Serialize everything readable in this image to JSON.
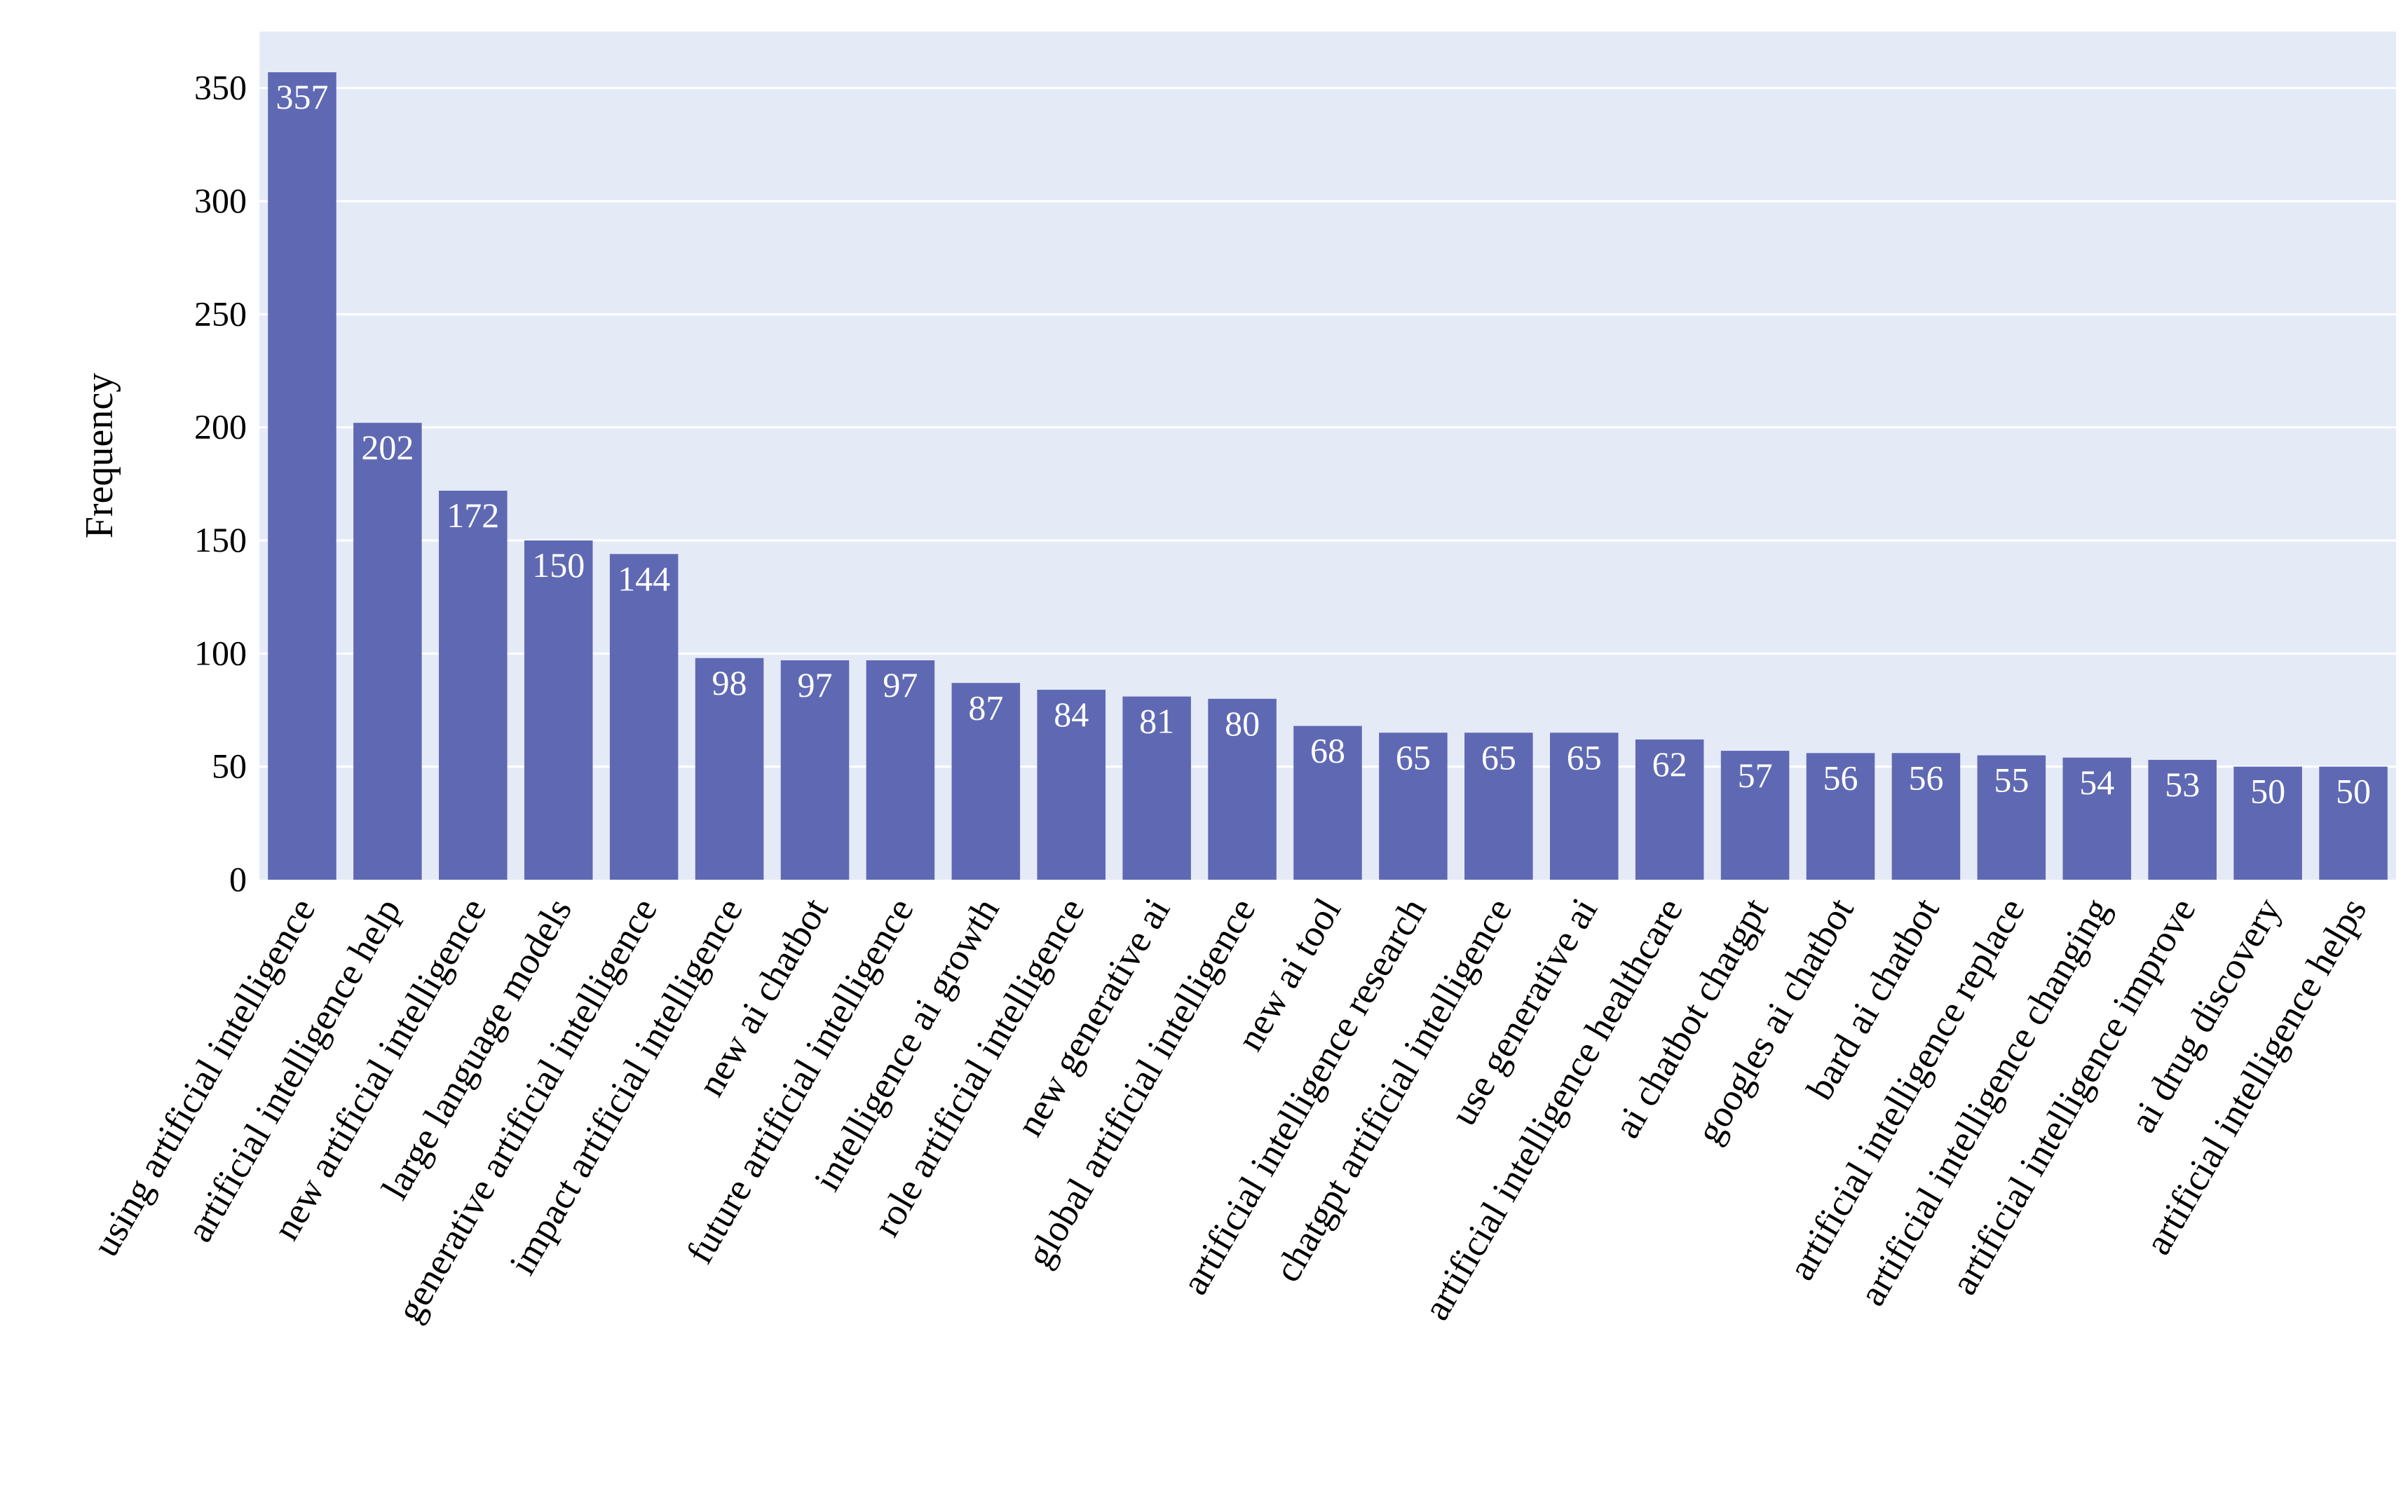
{
  "chart_data": {
    "type": "bar",
    "title": "",
    "xlabel": "",
    "ylabel": "Frequency",
    "ylim": [
      0,
      375
    ],
    "yticks": [
      0,
      50,
      100,
      150,
      200,
      250,
      300,
      350
    ],
    "grid": true,
    "legend": "none",
    "colors": {
      "bar": "#5f69b3",
      "plot_background": "#e5ebf6",
      "gridline": "#ffffff",
      "bar_label": "#ffffff",
      "axis_text": "#000000"
    },
    "categories": [
      "using artificial intelligence",
      "artificial intelligence help",
      "new artificial intelligence",
      "large language models",
      "generative artificial intelligence",
      "impact artificial intelligence",
      "new ai chatbot",
      "future artificial intelligence",
      "intelligence ai growth",
      "role artificial intelligence",
      "new generative ai",
      "global artificial intelligence",
      "new ai tool",
      "artificial intelligence research",
      "chatgpt artificial intelligence",
      "use generative ai",
      "artificial intelligence healthcare",
      "ai chatbot chatgpt",
      "googles ai chatbot",
      "bard ai chatbot",
      "artificial intelligence replace",
      "artificial intelligence changing",
      "artificial intelligence improve",
      "ai drug discovery",
      "artificial intelligence helps"
    ],
    "values": [
      357,
      202,
      172,
      150,
      144,
      98,
      97,
      97,
      87,
      84,
      81,
      80,
      68,
      65,
      65,
      65,
      62,
      57,
      56,
      56,
      55,
      54,
      53,
      50,
      50
    ]
  }
}
